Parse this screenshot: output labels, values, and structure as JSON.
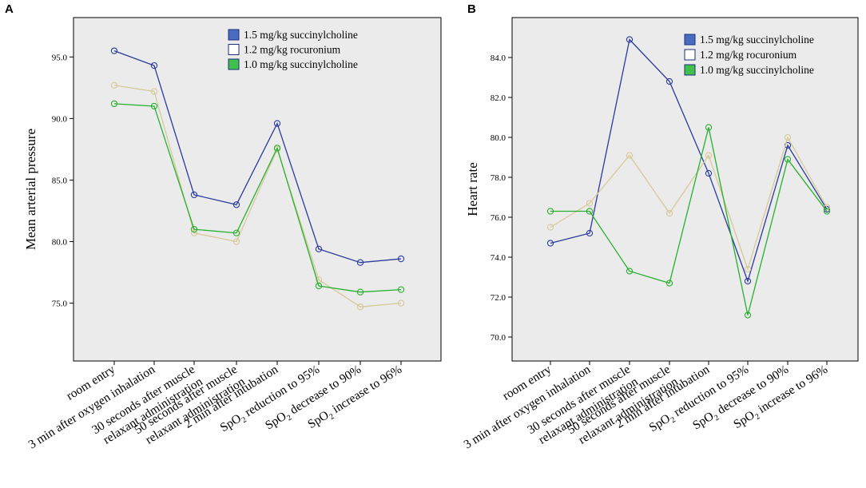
{
  "colors": {
    "series_1": "#2b3a9e",
    "series_2": "#d6c998",
    "series_3": "#27b02e",
    "legend_fill_1": "#4a6cc0",
    "legend_fill_2": "#ffffff",
    "legend_fill_3": "#3fc04a",
    "legend_stroke_1": "#1e2e78",
    "legend_stroke_2": "#1e2e78",
    "legend_stroke_3": "#1e2e78",
    "plot_bg": "#ebebeb"
  },
  "chart_data": [
    {
      "panel": "A",
      "type": "line",
      "title": "",
      "xlabel": "",
      "ylabel": "Mean arterial pressure",
      "ylim": [
        70.3,
        98.2
      ],
      "yticks": [
        75.0,
        80.0,
        85.0,
        90.0,
        95.0
      ],
      "ytick_labels": [
        "75.0",
        "80.0",
        "85.0",
        "90.0",
        "95.0"
      ],
      "grid": false,
      "legend_position": "top-right",
      "categories": [
        {
          "main": "room entry",
          "sub": "",
          "after": ""
        },
        {
          "main": "3 min after oxygen inhalation",
          "sub": "",
          "after": ""
        },
        {
          "main": "30 seconds after muscle",
          "sub": "",
          "after": "",
          "line2": "relaxant administration"
        },
        {
          "main": "50 seconds after muscle",
          "sub": "",
          "after": "",
          "line2": "relaxant administration"
        },
        {
          "main": "2 min after intubation",
          "sub": "",
          "after": ""
        },
        {
          "main": "SpO",
          "sub": "2",
          "after": " reduction to 95%"
        },
        {
          "main": "SpO",
          "sub": "2",
          "after": " decrease to 90%"
        },
        {
          "main": "SpO",
          "sub": "2",
          "after": " increase to 96%"
        }
      ],
      "series": [
        {
          "name": "1.5 mg/kg succinylcholine",
          "values": [
            95.5,
            94.3,
            83.8,
            83.0,
            89.6,
            79.4,
            78.3,
            78.6
          ]
        },
        {
          "name": "1.2 mg/kg rocuronium",
          "values": [
            92.7,
            92.2,
            80.7,
            80.0,
            87.5,
            76.9,
            74.7,
            75.0
          ]
        },
        {
          "name": "1.0 mg/kg succinylcholine",
          "values": [
            91.2,
            91.0,
            81.0,
            80.7,
            87.6,
            76.4,
            75.9,
            76.1
          ]
        }
      ]
    },
    {
      "panel": "B",
      "type": "line",
      "title": "",
      "xlabel": "",
      "ylabel": "Heart rate",
      "ylim": [
        68.8,
        86.0
      ],
      "yticks": [
        70.0,
        72.0,
        74.0,
        76.0,
        78.0,
        80.0,
        82.0,
        84.0
      ],
      "ytick_labels": [
        "70.0",
        "72.0",
        "74.0",
        "76.0",
        "78.0",
        "80.0",
        "82.0",
        "84.0"
      ],
      "grid": false,
      "legend_position": "top-right",
      "categories": [
        {
          "main": "room entry",
          "sub": "",
          "after": ""
        },
        {
          "main": "3 min after oxygen inhalation",
          "sub": "",
          "after": ""
        },
        {
          "main": "30 seconds after muscle",
          "sub": "",
          "after": "",
          "line2": "relaxant administration"
        },
        {
          "main": "50 seconds after muscle",
          "sub": "",
          "after": "",
          "line2": "relaxant administration"
        },
        {
          "main": "2 min after intubation",
          "sub": "",
          "after": ""
        },
        {
          "main": "SpO",
          "sub": "2",
          "after": " reduction to 95%"
        },
        {
          "main": "SpO",
          "sub": "2",
          "after": " decrease to 90%"
        },
        {
          "main": "SpO",
          "sub": "2",
          "after": " increase to 96%"
        }
      ],
      "series": [
        {
          "name": "1.5 mg/kg succinylcholine",
          "values": [
            74.7,
            75.2,
            84.9,
            82.8,
            78.2,
            72.8,
            79.6,
            76.4
          ]
        },
        {
          "name": "1.2 mg/kg rocuronium",
          "values": [
            75.5,
            76.7,
            79.1,
            76.2,
            79.1,
            73.4,
            80.0,
            76.5
          ]
        },
        {
          "name": "1.0 mg/kg succinylcholine",
          "values": [
            76.3,
            76.3,
            73.3,
            72.7,
            80.5,
            71.1,
            78.9,
            76.3
          ]
        }
      ]
    }
  ]
}
